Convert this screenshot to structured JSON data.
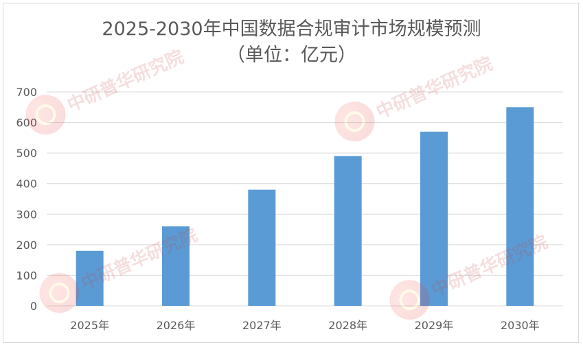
{
  "chart_data": {
    "type": "bar",
    "title_line1": "2025-2030年中国数据合规审计市场规模预测",
    "title_line2": "（单位：亿元）",
    "categories": [
      "2025年",
      "2026年",
      "2027年",
      "2028年",
      "2029年",
      "2030年"
    ],
    "values": [
      180,
      260,
      380,
      490,
      570,
      650
    ],
    "ylim": [
      0,
      700
    ],
    "yticks": [
      0,
      100,
      200,
      300,
      400,
      500,
      600,
      700
    ],
    "grid": true,
    "legend": "none",
    "bar_color": "#5b9bd5",
    "grid_color": "#d9d9d9"
  },
  "watermark": {
    "brand": "中研普华研究院"
  }
}
